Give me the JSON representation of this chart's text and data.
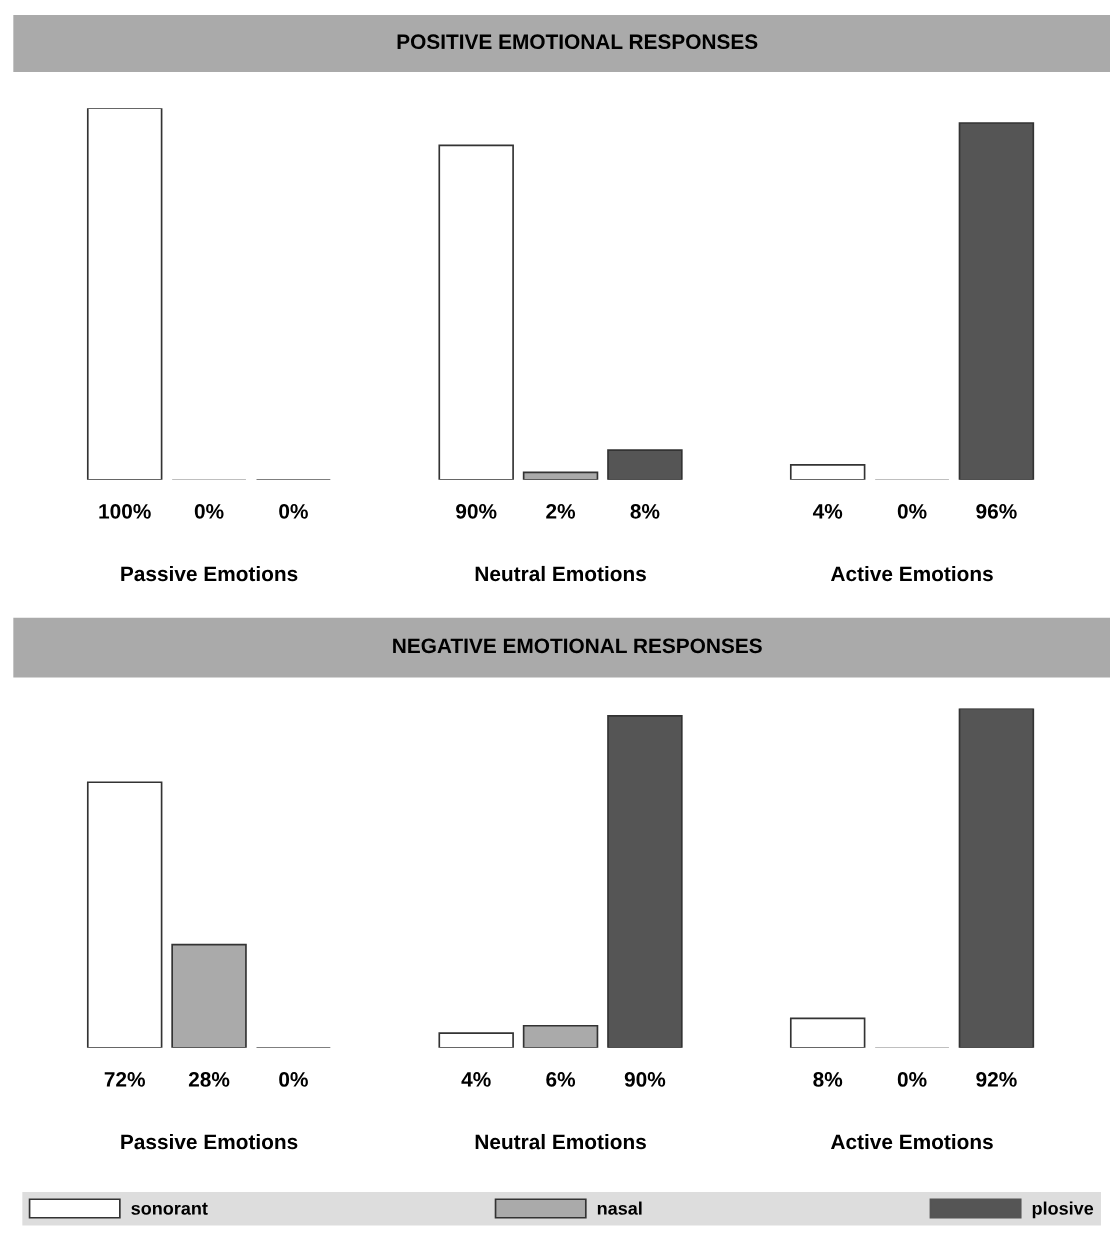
{
  "chart_data": [
    {
      "type": "bar",
      "title": "POSITIVE EMOTIONAL RESPONSES",
      "categories": [
        "Passive Emotions",
        "Neutral Emotions",
        "Active Emotions"
      ],
      "legend": false,
      "series": [
        {
          "color": "#ffffff",
          "values": [
            100,
            90,
            4
          ],
          "value_labels": [
            "100%",
            "90%",
            "4%"
          ]
        },
        {
          "color": "#aaaaaa",
          "values": [
            0,
            2,
            0
          ],
          "value_labels": [
            "0%",
            "2%",
            "0%"
          ]
        },
        {
          "color": "#555555",
          "values": [
            0,
            8,
            96
          ],
          "value_labels": [
            "0%",
            "8%",
            "96%"
          ]
        }
      ]
    },
    {
      "type": "bar",
      "title": "NEGATIVE EMOTIONAL RESPONSES",
      "categories": [
        "Passive Emotions",
        "Neutral Emotions",
        "Active Emotions"
      ],
      "legend": "bottom",
      "series": [
        {
          "name": "sonorant",
          "color": "#ffffff",
          "values": [
            72,
            4,
            8
          ],
          "value_labels": [
            "72%",
            "4%",
            "8%"
          ]
        },
        {
          "name": "nasal",
          "color": "#aaaaaa",
          "values": [
            28,
            6,
            0
          ],
          "value_labels": [
            "28%",
            "6%",
            "0%"
          ]
        },
        {
          "name": "plosive",
          "color": "#555555",
          "values": [
            0,
            90,
            92
          ],
          "value_labels": [
            "0%",
            "90%",
            "92%"
          ]
        }
      ]
    }
  ]
}
